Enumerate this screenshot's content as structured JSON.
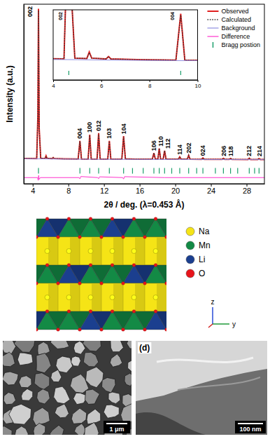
{
  "chart_data": {
    "type": "line",
    "x_label": "2θ / deg. (λ=0.453 Å)",
    "y_label": "Intensity (a.u.)",
    "xlim": [
      3,
      30
    ],
    "xticks": [
      4,
      8,
      12,
      16,
      20,
      24,
      28
    ],
    "ylim": [
      -14,
      103
    ],
    "yticks": [],
    "tick_labels": "x",
    "legend": "upper right",
    "series": [
      {
        "name": "Observed",
        "color": "#e02020",
        "line_style": "solid",
        "x": [
          3,
          4.45,
          4.58,
          4.65,
          4.73,
          4.9,
          5.4,
          5.5,
          5.6,
          6.2,
          6.3,
          6.4,
          7.5,
          9.1,
          9.3,
          9.47,
          10.22,
          10.4,
          10.57,
          11.22,
          11.4,
          11.57,
          12.42,
          12.6,
          12.77,
          14.0,
          14.2,
          14.4,
          15.5,
          17.42,
          17.6,
          17.76,
          18.05,
          18.2,
          18.35,
          18.64,
          18.8,
          18.96,
          20.35,
          20.5,
          20.65,
          21.35,
          21.5,
          21.65,
          22.95,
          23.1,
          23.25,
          25.25,
          25.4,
          25.55,
          26.05,
          26.2,
          26.35,
          28.15,
          28.3,
          28.45,
          29.25,
          29.4,
          29.55,
          30
        ],
        "values": [
          2.5,
          2.4,
          30,
          100,
          22,
          2.6,
          2.5,
          4.2,
          2.6,
          2.4,
          3.0,
          2.4,
          2.2,
          2.1,
          14,
          2.1,
          2.0,
          18,
          2.0,
          2.0,
          19,
          2.0,
          2.0,
          14,
          2.0,
          2.0,
          17,
          2.2,
          2.0,
          2.0,
          6,
          2.1,
          2.1,
          9,
          2.1,
          2.0,
          7.5,
          2.0,
          2.0,
          3.5,
          2.0,
          2.0,
          4.5,
          2.0,
          1.9,
          2.8,
          1.9,
          1.9,
          2.6,
          1.9,
          1.9,
          2.5,
          1.9,
          1.8,
          2.6,
          1.8,
          1.8,
          2.4,
          1.8,
          1.8
        ]
      },
      {
        "name": "Calculated",
        "color": "#333333",
        "line_style": "dotted",
        "x": [
          3,
          4.45,
          4.58,
          4.65,
          4.73,
          4.9,
          5.4,
          5.5,
          5.6,
          6.2,
          6.3,
          6.4,
          7.5,
          9.1,
          9.3,
          9.47,
          10.22,
          10.4,
          10.57,
          11.22,
          11.4,
          11.57,
          12.42,
          12.6,
          12.77,
          14.0,
          14.2,
          14.4,
          15.5,
          17.42,
          17.6,
          17.76,
          18.05,
          18.2,
          18.35,
          18.64,
          18.8,
          18.96,
          20.35,
          20.5,
          20.65,
          21.35,
          21.5,
          21.65,
          22.95,
          23.1,
          23.25,
          25.25,
          25.4,
          25.55,
          26.05,
          26.2,
          26.35,
          28.15,
          28.3,
          28.45,
          29.25,
          29.4,
          29.55,
          30
        ],
        "values": [
          2.5,
          2.4,
          30,
          99,
          22,
          2.6,
          2.5,
          4.0,
          2.6,
          2.4,
          3.0,
          2.4,
          2.2,
          2.1,
          13.7,
          2.1,
          2.0,
          17.6,
          2.0,
          2.0,
          18.7,
          2.0,
          2.0,
          13.8,
          2.0,
          2.0,
          16.6,
          2.2,
          2.0,
          2.0,
          6,
          2.1,
          2.1,
          9,
          2.1,
          2.0,
          7.5,
          2.0,
          2.0,
          3.5,
          2.0,
          2.0,
          4.5,
          2.0,
          1.9,
          2.8,
          1.9,
          1.9,
          2.6,
          1.9,
          1.9,
          2.5,
          1.9,
          1.8,
          2.6,
          1.8,
          1.8,
          2.4,
          1.8,
          1.8
        ]
      },
      {
        "name": "Background",
        "color": "#8e8ee0",
        "line_style": "solid",
        "x": [
          3,
          5,
          8,
          12,
          16,
          20,
          25,
          30
        ],
        "values": [
          2.3,
          2.2,
          2.0,
          1.9,
          1.85,
          1.8,
          1.75,
          1.7
        ]
      },
      {
        "name": "Difference",
        "color": "#ff33cc",
        "line_style": "solid",
        "x": [
          3,
          4.55,
          4.62,
          4.67,
          4.72,
          4.85,
          9.2,
          9.3,
          9.4,
          11.3,
          11.4,
          11.5,
          14.1,
          14.2,
          14.3,
          18.8,
          30
        ],
        "values": [
          -10,
          -10,
          -11.8,
          -8.6,
          -11.2,
          -10,
          -10,
          -10.8,
          -9.3,
          -10,
          -10.7,
          -9.5,
          -10,
          -10.9,
          -9.4,
          -10,
          -10
        ]
      },
      {
        "name": "Bragg postion",
        "type": "ticks",
        "color": "#1a9e6a",
        "x": [
          4.65,
          9.3,
          10.4,
          11.4,
          12.6,
          14.2,
          15.2,
          16.4,
          17.6,
          18.2,
          18.8,
          19.6,
          20.5,
          21.5,
          22.4,
          23.1,
          24.5,
          25.4,
          26.2,
          27,
          28.3,
          28.9,
          29.4
        ]
      }
    ],
    "annotations": [
      {
        "text": "002",
        "x": 4.65
      },
      {
        "text": "004",
        "x": 9.3
      },
      {
        "text": "100",
        "x": 10.4
      },
      {
        "text": "012",
        "x": 11.4
      },
      {
        "text": "103",
        "x": 12.6
      },
      {
        "text": "104",
        "x": 14.2
      },
      {
        "text": "106",
        "x": 17.6
      },
      {
        "text": "110",
        "x": 18.2
      },
      {
        "text": "112",
        "x": 18.8
      },
      {
        "text": "114",
        "x": 20.5
      },
      {
        "text": "202",
        "x": 21.5
      },
      {
        "text": "024",
        "x": 23.1
      },
      {
        "text": "206",
        "x": 25.4
      },
      {
        "text": "118",
        "x": 26.2
      },
      {
        "text": "212",
        "x": 28.3
      },
      {
        "text": "214",
        "x": 29.4
      }
    ],
    "inset": {
      "xlim": [
        4,
        10
      ],
      "ylim": [
        -3,
        15
      ],
      "xticks": [
        4,
        6,
        8,
        10
      ],
      "annotations": [
        {
          "text": "002",
          "x": 4.65
        },
        {
          "text": "004",
          "x": 9.3
        }
      ]
    }
  },
  "structure": {
    "legend": [
      {
        "label": "Na",
        "color": "#f5e416"
      },
      {
        "label": "Mn",
        "color": "#138a45"
      },
      {
        "label": "Li",
        "color": "#1b3f8f"
      },
      {
        "label": "O",
        "color": "#e8141a"
      }
    ],
    "axes": [
      "z",
      "y"
    ]
  },
  "sem": {
    "panels": [
      {
        "scale_bar": "1 μm"
      },
      {
        "label": "(d)",
        "scale_bar": "100 nm"
      }
    ]
  }
}
